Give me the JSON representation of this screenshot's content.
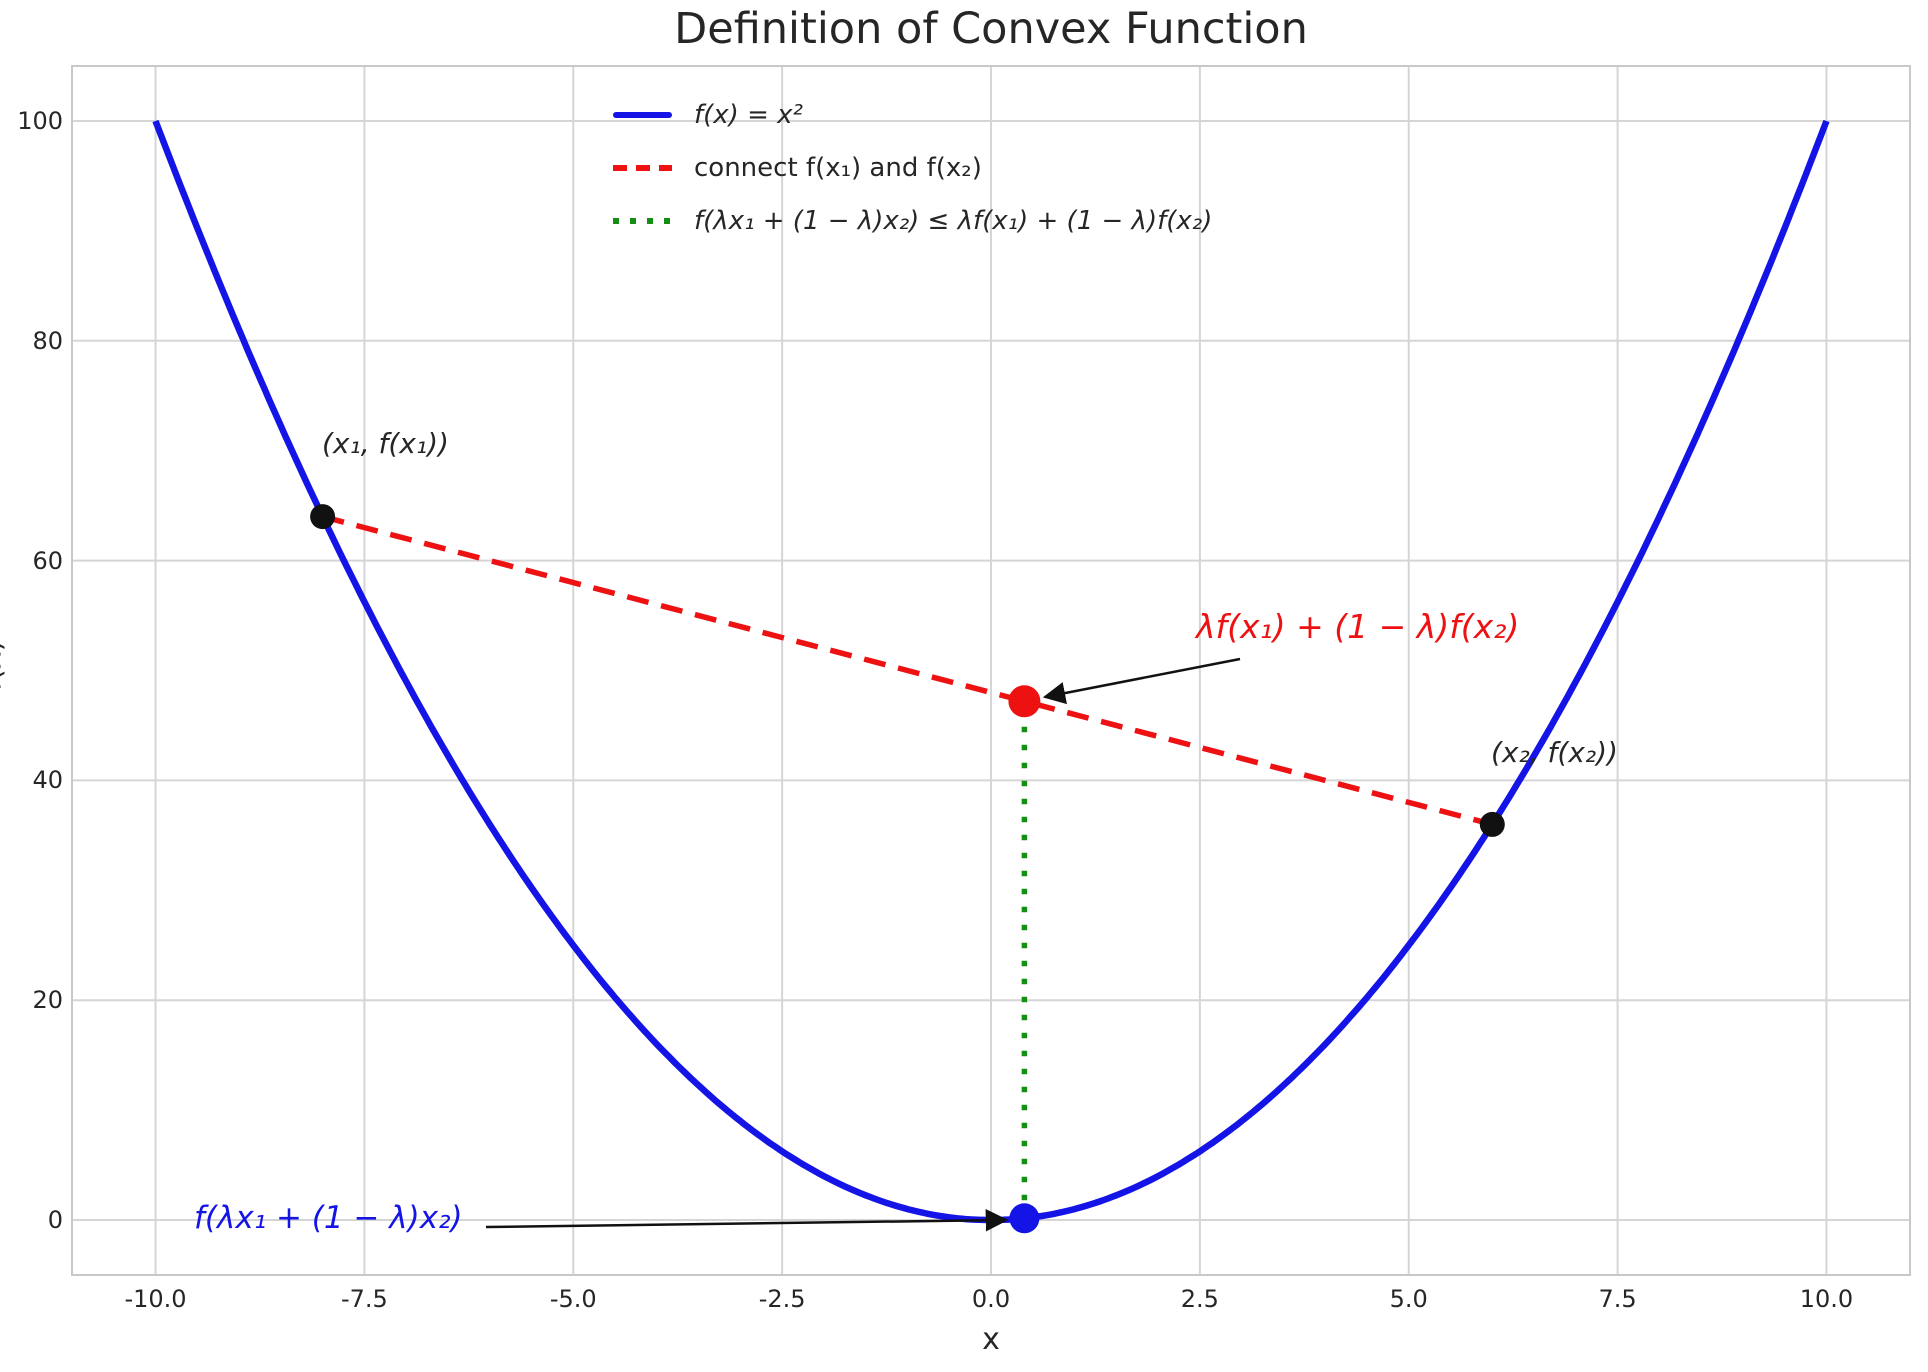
{
  "title": "Definition of Convex Function",
  "axes": {
    "xlabel": "x",
    "ylabel": "f(x)",
    "x_tick_labels": [
      "-10.0",
      "-7.5",
      "-5.0",
      "-2.5",
      "0.0",
      "2.5",
      "5.0",
      "7.5",
      "10.0"
    ],
    "y_tick_labels": [
      "0",
      "20",
      "40",
      "60",
      "80",
      "100"
    ]
  },
  "legend": {
    "items": [
      {
        "label": "f(x) = x²",
        "color": "#1414e6",
        "line_style": "solid"
      },
      {
        "label": "connect f(x₁) and f(x₂)",
        "color": "#ee1111",
        "line_style": "dashed"
      },
      {
        "label": "f(λx₁ + (1 − λ)x₂) ≤ λf(x₁) + (1 − λ)f(x₂)",
        "color": "#148f14",
        "line_style": "dotted"
      }
    ]
  },
  "annotations": {
    "point1_label": "(x₁, f(x₁))",
    "point2_label": "(x₂, f(x₂))",
    "chord_value_label": "λf(x₁) + (1 − λ)f(x₂)",
    "function_value_label": "f(λx₁ + (1 − λ)x₂)"
  },
  "chart_data": {
    "type": "line",
    "title": "Definition of Convex Function",
    "xlabel": "x",
    "ylabel": "f(x)",
    "xlim": [
      -11,
      11
    ],
    "ylim": [
      -5,
      105
    ],
    "x_tick_values": [
      -10,
      -7.5,
      -5,
      -2.5,
      0,
      2.5,
      5,
      7.5,
      10
    ],
    "y_tick_values": [
      0,
      20,
      40,
      60,
      80,
      100
    ],
    "grid": true,
    "legend_position": "upper center, no frame",
    "series": [
      {
        "name": "f(x) = x²",
        "kind": "function",
        "expr": "x^2",
        "x_range": [
          -10,
          10
        ],
        "color": "#1414e6",
        "style": "solid",
        "width": 6.5
      },
      {
        "name": "connect f(x₁) and f(x₂)",
        "kind": "segment",
        "points": [
          [
            -8,
            64
          ],
          [
            6,
            36
          ]
        ],
        "color": "#ee1111",
        "style": "dashed",
        "width": 5.5
      },
      {
        "name": "f(λx₁ + (1 − λ)x₂) ≤ λf(x₁) + (1 − λ)f(x₂)",
        "kind": "segment",
        "points": [
          [
            0.4,
            0.16
          ],
          [
            0.4,
            47.2
          ]
        ],
        "color": "#148f14",
        "style": "dotted",
        "width": 5.5
      }
    ],
    "points": [
      {
        "x": -8,
        "y": 64,
        "color": "#111111",
        "label": "(x₁, f(x₁))"
      },
      {
        "x": 6,
        "y": 36,
        "color": "#111111",
        "label": "(x₂, f(x₂))"
      },
      {
        "x": 0.4,
        "y": 47.2,
        "color": "#ee1111",
        "label": "λf(x₁) + (1 − λ)f(x₂)"
      },
      {
        "x": 0.4,
        "y": 0.16,
        "color": "#1414e6",
        "label": "f(λx₁ + (1 − λ)x₂)"
      }
    ]
  }
}
